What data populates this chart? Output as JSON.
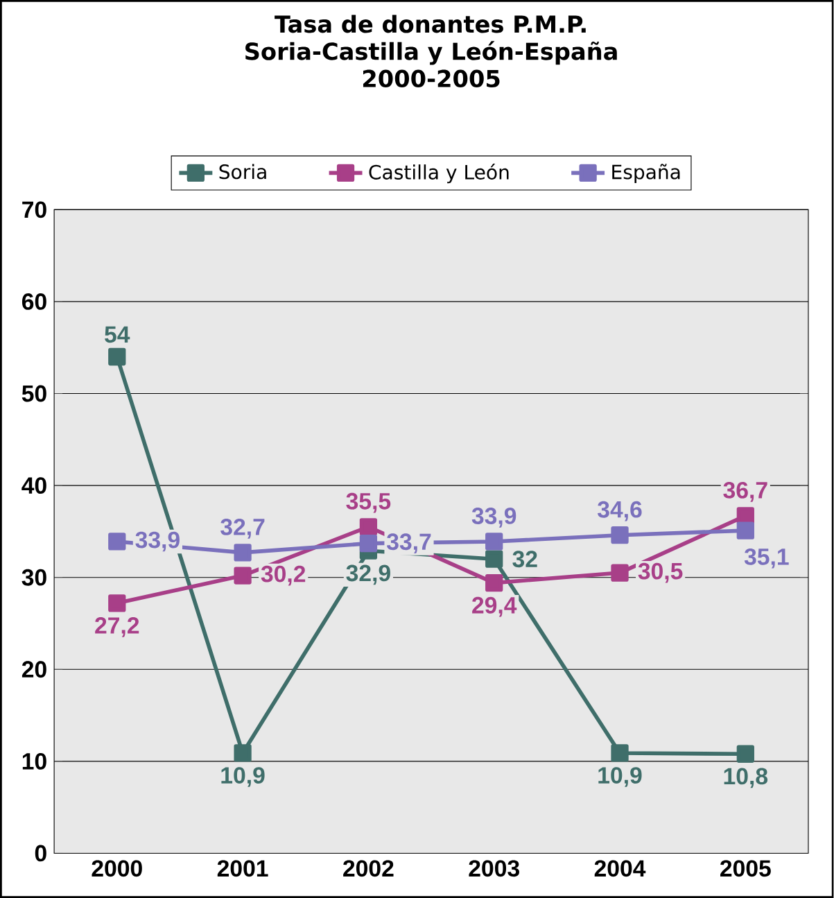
{
  "chart_data": {
    "type": "line",
    "title": "Tasa de donantes P.M.P.",
    "subtitle": "Soria-Castilla y León-España\n2000-2005",
    "categories": [
      "2000",
      "2001",
      "2002",
      "2003",
      "2004",
      "2005"
    ],
    "series": [
      {
        "name": "Soria",
        "color": "#3f6e6a",
        "values": [
          54,
          10.9,
          32.9,
          32,
          10.9,
          10.8
        ],
        "value_labels": [
          "54",
          "10,9",
          "32,9",
          "32",
          "10,9",
          "10,8"
        ]
      },
      {
        "name": "Castilla y León",
        "color": "#a83f88",
        "values": [
          27.2,
          30.2,
          35.5,
          29.4,
          30.5,
          36.7
        ],
        "value_labels": [
          "27,2",
          "30,2",
          "35,5",
          "29,4",
          "30,5",
          "36,7"
        ]
      },
      {
        "name": "España",
        "color": "#7a70bc",
        "values": [
          33.9,
          32.7,
          33.7,
          33.9,
          34.6,
          35.1
        ],
        "value_labels": [
          "33,9",
          "32,7",
          "33,7",
          "33,9",
          "34,6",
          "35,1"
        ]
      }
    ],
    "ylim": [
      0,
      70
    ],
    "yticks": [
      0,
      10,
      20,
      30,
      40,
      50,
      60,
      70
    ],
    "grid": "y",
    "legend": "top",
    "marker": "square",
    "line_style": "solid"
  }
}
